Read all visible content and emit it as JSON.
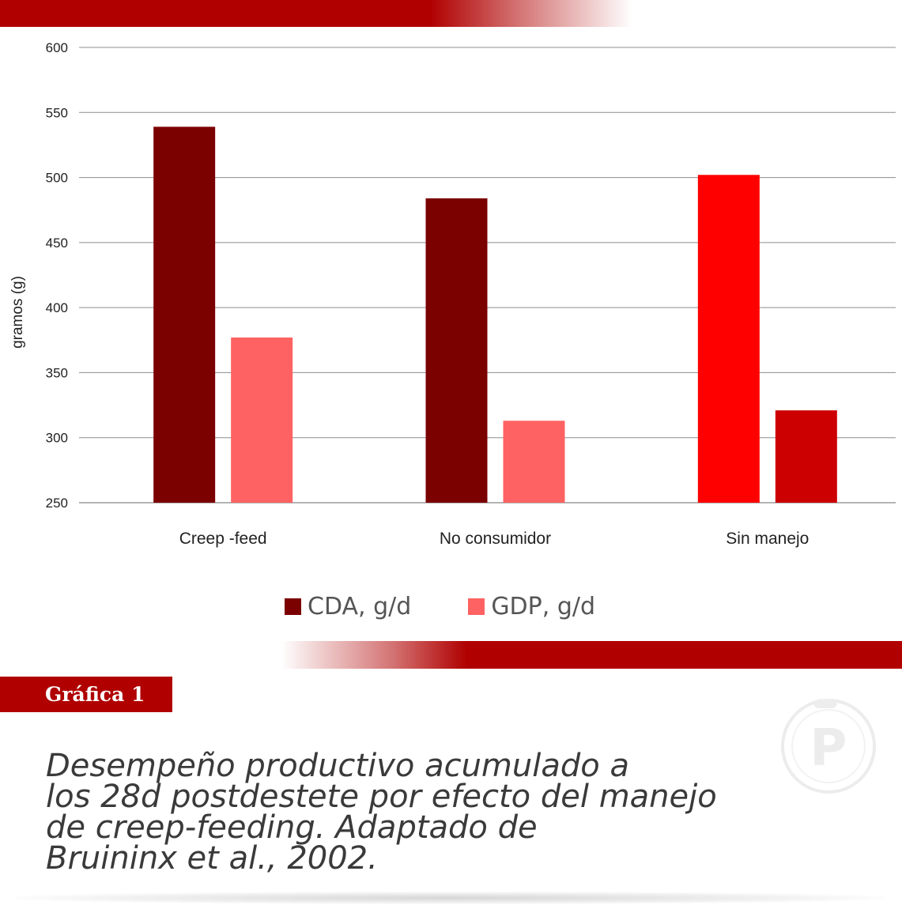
{
  "colors": {
    "brand_red": "#b00000",
    "cda": "#7b0000",
    "gdp": "#ff6262",
    "sin_manejo_cda": "#ff0000",
    "sin_manejo_gdp": "#cc0000",
    "grid": "#8c8c8c"
  },
  "chart_data": {
    "type": "bar",
    "categories": [
      "Creep -feed",
      "No consumidor",
      "Sin manejo"
    ],
    "series": [
      {
        "name": "CDA, g/d",
        "values": [
          539,
          484,
          502
        ]
      },
      {
        "name": "GDP, g/d",
        "values": [
          377,
          313,
          321
        ]
      }
    ],
    "ylabel": "gramos (g)",
    "ylim": [
      250,
      600
    ],
    "yticks": [
      250,
      300,
      350,
      400,
      450,
      500,
      550,
      600
    ],
    "grid": true,
    "legend_position": "bottom"
  },
  "legend": {
    "items": [
      {
        "label": "CDA, g/d",
        "color": "#7b0000"
      },
      {
        "label": "GDP, g/d",
        "color": "#ff6262"
      }
    ]
  },
  "figure_tag": "Gráfica 1",
  "caption": {
    "lines": [
      "Desempeño productivo acumulado a",
      "los 28d postdestete por efecto del manejo",
      "de creep-feeding. Adaptado de",
      "Bruininx et al., 2002."
    ]
  },
  "logo": {
    "icon": "pig-p-logo-icon",
    "letter": "P"
  }
}
